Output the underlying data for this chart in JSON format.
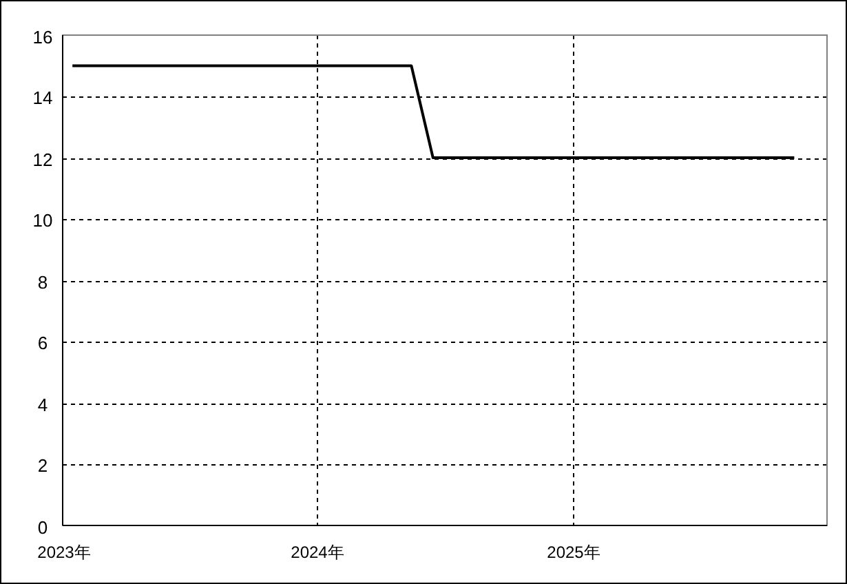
{
  "chart_data": {
    "type": "line",
    "x": [
      "2023-01-15",
      "2024-05-15",
      "2024-06-15",
      "2025-11-15"
    ],
    "series": [
      {
        "color": "#000000",
        "values": [
          15,
          15,
          12,
          12
        ]
      }
    ],
    "xlim": [
      "2023-01-01",
      "2026-01-01"
    ],
    "xticks": [
      {
        "value": "2023-01-01",
        "label": "2023年"
      },
      {
        "value": "2024-01-01",
        "label": "2024年"
      },
      {
        "value": "2025-01-01",
        "label": "2025年"
      }
    ],
    "ylim": [
      0,
      16
    ],
    "yticks": [
      0,
      2,
      4,
      6,
      8,
      10,
      12,
      14,
      16
    ],
    "grid": true
  }
}
